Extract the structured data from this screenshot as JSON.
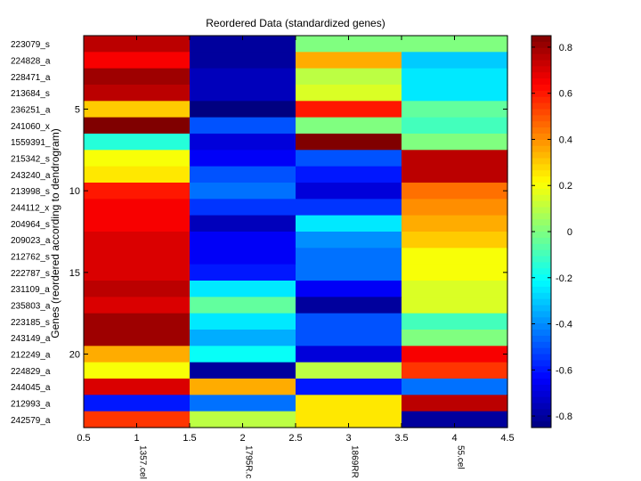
{
  "chart_data": {
    "type": "heatmap",
    "title": "Reordered Data (standardized genes)",
    "ylabel": "Genes (reordered according to dendrogram)",
    "xlabel": "",
    "xlim": [
      0.5,
      4.5
    ],
    "ylim": [
      0.5,
      24.5
    ],
    "xticks": [
      "0.5",
      "1",
      "1.5",
      "2",
      "2.5",
      "3",
      "3.5",
      "4",
      "4.5"
    ],
    "yticks": [
      "5",
      "10",
      "15",
      "20"
    ],
    "columns": [
      "1357.cel",
      "1795R.c",
      "1869RR",
      "55.cel"
    ],
    "rows": [
      "223079_s",
      "224828_a",
      "228471_a",
      "213684_s",
      "236251_a",
      "241060_x",
      "1559391_",
      "215342_s",
      "243240_a",
      "213998_s",
      "244112_x",
      "204964_s",
      "209023_a",
      "212762_s",
      "222787_s",
      "231109_a",
      "235803_a",
      "223185_s",
      "243149_a",
      "212249_a",
      "224829_a",
      "244045_a",
      "212993_a",
      "242579_a"
    ],
    "values": [
      [
        0.75,
        -0.8,
        0.0,
        0.0
      ],
      [
        0.65,
        -0.8,
        0.35,
        -0.3
      ],
      [
        0.8,
        -0.75,
        0.1,
        -0.25
      ],
      [
        0.75,
        -0.75,
        0.15,
        -0.25
      ],
      [
        0.3,
        -0.85,
        0.6,
        -0.05
      ],
      [
        0.85,
        -0.5,
        0.0,
        -0.1
      ],
      [
        -0.15,
        -0.7,
        0.85,
        0.0
      ],
      [
        0.2,
        -0.65,
        -0.5,
        0.75
      ],
      [
        0.25,
        -0.5,
        -0.6,
        0.75
      ],
      [
        0.6,
        -0.45,
        -0.7,
        0.45
      ],
      [
        0.65,
        -0.55,
        -0.55,
        0.4
      ],
      [
        0.65,
        -0.75,
        -0.25,
        0.35
      ],
      [
        0.7,
        -0.65,
        -0.4,
        0.3
      ],
      [
        0.7,
        -0.65,
        -0.45,
        0.2
      ],
      [
        0.7,
        -0.6,
        -0.45,
        0.2
      ],
      [
        0.75,
        -0.25,
        -0.65,
        0.15
      ],
      [
        0.7,
        -0.05,
        -0.8,
        0.15
      ],
      [
        0.8,
        -0.25,
        -0.5,
        -0.1
      ],
      [
        0.8,
        -0.35,
        -0.5,
        0.0
      ],
      [
        0.35,
        -0.2,
        -0.7,
        0.65
      ],
      [
        0.2,
        -0.8,
        0.1,
        0.55
      ],
      [
        0.7,
        0.35,
        -0.6,
        -0.45
      ],
      [
        -0.6,
        -0.45,
        0.25,
        0.75
      ],
      [
        0.55,
        0.1,
        0.25,
        -0.8
      ]
    ],
    "colormap": "jet",
    "clim": [
      -0.85,
      0.85
    ],
    "colorbar_ticks": [
      "0.8",
      "0.6",
      "0.4",
      "0.2",
      "0",
      "-0.2",
      "-0.4",
      "-0.6",
      "-0.8"
    ],
    "colorbar_tick_values": [
      0.8,
      0.6,
      0.4,
      0.2,
      0,
      -0.2,
      -0.4,
      -0.6,
      -0.8
    ]
  }
}
